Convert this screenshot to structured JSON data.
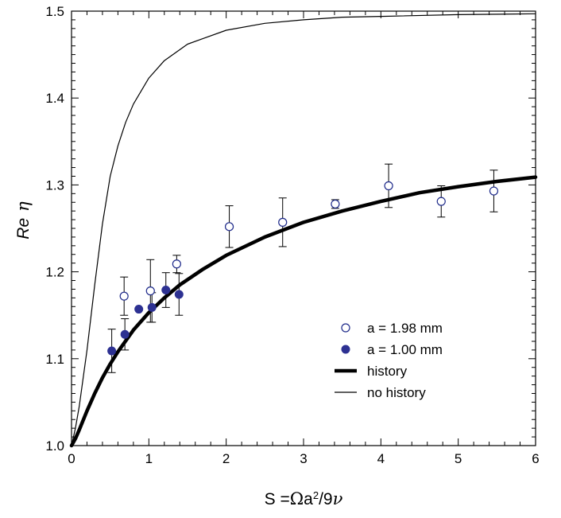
{
  "chart_data": {
    "type": "scatter",
    "title": "",
    "xlabel": {
      "prefix": "S =",
      "omega": "Ω",
      "a": "a",
      "sup": "2",
      "div": "/9",
      "nu": "ν"
    },
    "ylabel": {
      "re": "Re",
      "eta": "η"
    },
    "xlim": [
      0,
      6
    ],
    "ylim": [
      1.0,
      1.5
    ],
    "xticks": [
      "0",
      "1",
      "2",
      "3",
      "4",
      "5",
      "6"
    ],
    "yticks": [
      "1.0",
      "1.1",
      "1.2",
      "1.3",
      "1.4",
      "1.5"
    ],
    "grid": false,
    "legend_position": "lower-right",
    "series": [
      {
        "name": "a = 1.98 mm",
        "kind": "points",
        "marker": "open-circle",
        "color": "#1e2a8a",
        "points": [
          {
            "x": 0.68,
            "y": 1.172,
            "err": 0.022
          },
          {
            "x": 1.02,
            "y": 1.178,
            "err": 0.036
          },
          {
            "x": 1.36,
            "y": 1.209,
            "err": 0.01
          },
          {
            "x": 2.04,
            "y": 1.252,
            "err": 0.024
          },
          {
            "x": 2.73,
            "y": 1.257,
            "err": 0.028
          },
          {
            "x": 3.41,
            "y": 1.278,
            "err": 0.005
          },
          {
            "x": 4.1,
            "y": 1.299,
            "err": 0.025
          },
          {
            "x": 4.78,
            "y": 1.281,
            "err": 0.018
          },
          {
            "x": 5.46,
            "y": 1.293,
            "err": 0.024
          }
        ]
      },
      {
        "name": "a = 1.00 mm",
        "kind": "points",
        "marker": "filled-circle",
        "color": "#2d3192",
        "points": [
          {
            "x": 0.52,
            "y": 1.109,
            "err": 0.025
          },
          {
            "x": 0.69,
            "y": 1.128,
            "err": 0.018
          },
          {
            "x": 0.87,
            "y": 1.157,
            "err": 0.0
          },
          {
            "x": 1.04,
            "y": 1.159,
            "err": 0.017
          },
          {
            "x": 1.22,
            "y": 1.179,
            "err": 0.02
          },
          {
            "x": 1.39,
            "y": 1.174,
            "err": 0.024
          }
        ]
      },
      {
        "name": "history",
        "kind": "line",
        "style": "thick",
        "color": "#000000",
        "x": [
          0,
          0.05,
          0.1,
          0.2,
          0.3,
          0.4,
          0.5,
          0.6,
          0.8,
          1.0,
          1.2,
          1.4,
          1.7,
          2.0,
          2.5,
          3.0,
          3.5,
          4.0,
          4.5,
          5.0,
          5.5,
          6.0
        ],
        "y": [
          1.0,
          1.008,
          1.018,
          1.04,
          1.06,
          1.078,
          1.094,
          1.108,
          1.133,
          1.153,
          1.17,
          1.185,
          1.203,
          1.219,
          1.24,
          1.257,
          1.27,
          1.281,
          1.291,
          1.298,
          1.304,
          1.309
        ]
      },
      {
        "name": "no history",
        "kind": "line",
        "style": "thin",
        "color": "#000000",
        "x": [
          0,
          0.05,
          0.1,
          0.2,
          0.3,
          0.4,
          0.5,
          0.6,
          0.7,
          0.8,
          1.0,
          1.2,
          1.5,
          2.0,
          2.5,
          3.0,
          3.5,
          4.0,
          5.0,
          6.0
        ],
        "y": [
          1.0,
          1.02,
          1.045,
          1.11,
          1.185,
          1.255,
          1.31,
          1.345,
          1.372,
          1.393,
          1.423,
          1.443,
          1.462,
          1.478,
          1.486,
          1.49,
          1.493,
          1.494,
          1.496,
          1.497
        ]
      }
    ]
  }
}
